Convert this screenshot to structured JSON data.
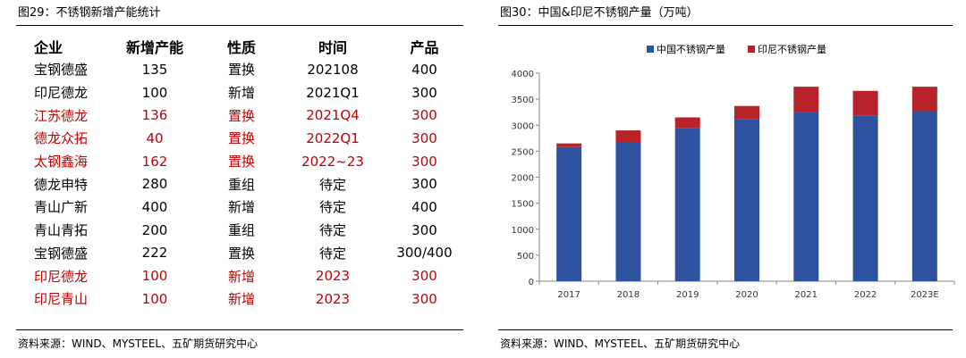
{
  "left": {
    "title": "图29：不锈钢新增产能统计",
    "headers": [
      "企业",
      "新增产能",
      "性质",
      "时间",
      "产品"
    ],
    "rows": [
      {
        "cells": [
          "宝钢德盛",
          "135",
          "置换",
          "202108",
          "400"
        ],
        "highlight": false
      },
      {
        "cells": [
          "印尼德龙",
          "100",
          "新增",
          "2021Q1",
          "300"
        ],
        "highlight": false
      },
      {
        "cells": [
          "江苏德龙",
          "136",
          "置换",
          "2021Q4",
          "300"
        ],
        "highlight": true
      },
      {
        "cells": [
          "德龙众拓",
          "40",
          "置换",
          "2022Q1",
          "300"
        ],
        "highlight": true
      },
      {
        "cells": [
          "太钢鑫海",
          "162",
          "置换",
          "2022~23",
          "300"
        ],
        "highlight": true
      },
      {
        "cells": [
          "德龙申特",
          "280",
          "重组",
          "待定",
          "300"
        ],
        "highlight": false
      },
      {
        "cells": [
          "青山广新",
          "400",
          "新增",
          "待定",
          "400"
        ],
        "highlight": false
      },
      {
        "cells": [
          "青山青拓",
          "200",
          "重组",
          "待定",
          "300"
        ],
        "highlight": false
      },
      {
        "cells": [
          "宝钢德盛",
          "222",
          "置换",
          "待定",
          "300/400"
        ],
        "highlight": false
      },
      {
        "cells": [
          "印尼德龙",
          "100",
          "新增",
          "2023",
          "300"
        ],
        "highlight": true
      },
      {
        "cells": [
          "印尼青山",
          "100",
          "新增",
          "2023",
          "300"
        ],
        "highlight": true
      }
    ],
    "source": "资料来源：WIND、MYSTEEL、五矿期货研究中心"
  },
  "right": {
    "title": "图30：中国&印尼不锈钢产量（万吨）",
    "source": "资料来源：WIND、MYSTEEL、五矿期货研究中心"
  },
  "colors": {
    "china": "#2f52a0",
    "indonesia": "#b8232a",
    "highlight_text": "#c00000"
  },
  "chart_data": {
    "type": "bar",
    "stacked": true,
    "title": "图30：中国&印尼不锈钢产量（万吨）",
    "categories": [
      "2017",
      "2018",
      "2019",
      "2020",
      "2021",
      "2022",
      "2023E"
    ],
    "series": [
      {
        "name": "中国不锈钢产量",
        "values": [
          2580,
          2670,
          2940,
          3110,
          3260,
          3180,
          3270
        ]
      },
      {
        "name": "印尼不锈钢产量",
        "values": [
          70,
          230,
          210,
          260,
          480,
          480,
          470
        ]
      }
    ],
    "ylim": [
      0,
      4000
    ],
    "yticks": [
      0,
      500,
      1000,
      1500,
      2000,
      2500,
      3000,
      3500,
      4000
    ],
    "legend": "top-center",
    "grid": false,
    "xlabel": "",
    "ylabel": ""
  }
}
